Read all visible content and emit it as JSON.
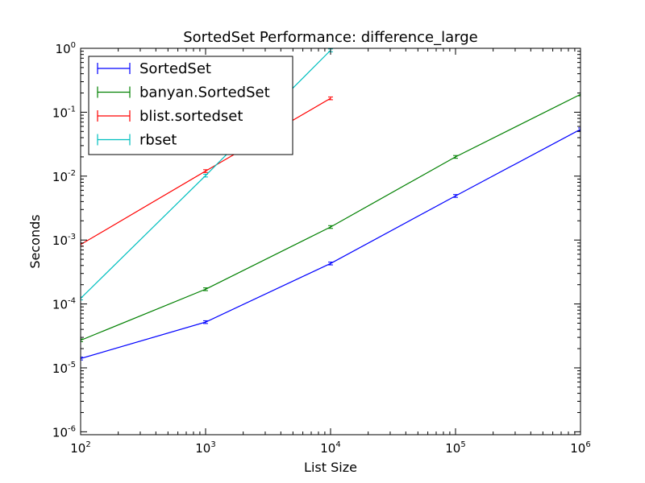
{
  "chart_data": {
    "type": "line",
    "title": "SortedSet Performance: difference_large",
    "xlabel": "List Size",
    "ylabel": "Seconds",
    "xscale": "log",
    "yscale": "log",
    "xlim": [
      100,
      1000000
    ],
    "ylim": [
      9e-07,
      1
    ],
    "grid": false,
    "legend_position": "top-left",
    "x_ticks": [
      {
        "base": "10",
        "exp": "2",
        "value": 100
      },
      {
        "base": "10",
        "exp": "3",
        "value": 1000
      },
      {
        "base": "10",
        "exp": "4",
        "value": 10000
      },
      {
        "base": "10",
        "exp": "5",
        "value": 100000
      },
      {
        "base": "10",
        "exp": "6",
        "value": 1000000
      }
    ],
    "y_ticks": [
      {
        "base": "10",
        "exp": "-6",
        "value": 1e-06
      },
      {
        "base": "10",
        "exp": "-5",
        "value": 1e-05
      },
      {
        "base": "10",
        "exp": "-4",
        "value": 0.0001
      },
      {
        "base": "10",
        "exp": "-3",
        "value": 0.001
      },
      {
        "base": "10",
        "exp": "-2",
        "value": 0.01
      },
      {
        "base": "10",
        "exp": "-1",
        "value": 0.1
      },
      {
        "base": "10",
        "exp": "0",
        "value": 1
      }
    ],
    "series": [
      {
        "name": "SortedSet",
        "color": "#0000ff",
        "x": [
          100,
          1000,
          10000,
          100000,
          1000000
        ],
        "y": [
          1.4e-05,
          5.2e-05,
          0.00043,
          0.0049,
          0.054
        ]
      },
      {
        "name": "banyan.SortedSet",
        "color": "#008000",
        "x": [
          100,
          1000,
          10000,
          100000,
          1000000
        ],
        "y": [
          2.7e-05,
          0.00017,
          0.0016,
          0.02,
          0.19
        ]
      },
      {
        "name": "blist.sortedset",
        "color": "#ff0000",
        "x": [
          100,
          1000,
          10000
        ],
        "y": [
          0.00085,
          0.012,
          0.165
        ]
      },
      {
        "name": "rbset",
        "color": "#00bfbf",
        "x": [
          100,
          1000,
          10000
        ],
        "y": [
          0.000122,
          0.0102,
          0.93
        ]
      }
    ]
  }
}
